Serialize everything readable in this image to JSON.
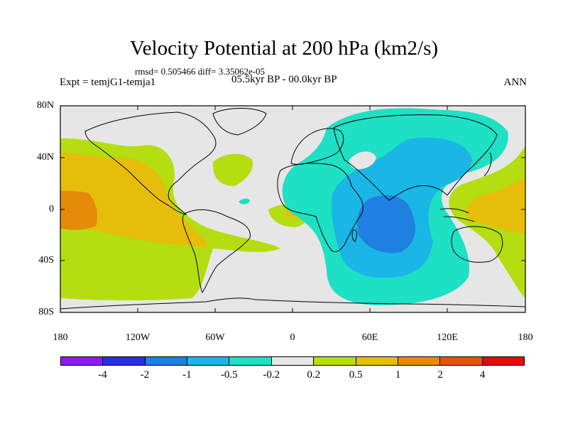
{
  "title": "Velocity Potential at 200 hPa (km2/s)",
  "stats_line": "rmsd= 0.505466 diff= 3.35062e-05",
  "experiment": "Expt = temjG1-temja1",
  "period": "05.5kyr BP - 00.0kyr BP",
  "season": "ANN",
  "lat_labels": [
    "80N",
    "40N",
    "0",
    "40S",
    "80S"
  ],
  "lon_labels": [
    "180",
    "120W",
    "60W",
    "0",
    "60E",
    "120E",
    "180"
  ],
  "colorbar": {
    "colors": [
      "#8a1cf0",
      "#2a2ee6",
      "#1e80e0",
      "#1ab6e6",
      "#1ee0c4",
      "#e6e6e6",
      "#b4de12",
      "#e6be0a",
      "#e68a0a",
      "#e6520a",
      "#e60a0a"
    ],
    "labels": [
      "-4",
      "-2",
      "-1",
      "-0.5",
      "-0.2",
      "0.2",
      "0.5",
      "1",
      "2",
      "4"
    ]
  },
  "colors": {
    "background": "#e6e6e6",
    "coast": "#000000"
  }
}
